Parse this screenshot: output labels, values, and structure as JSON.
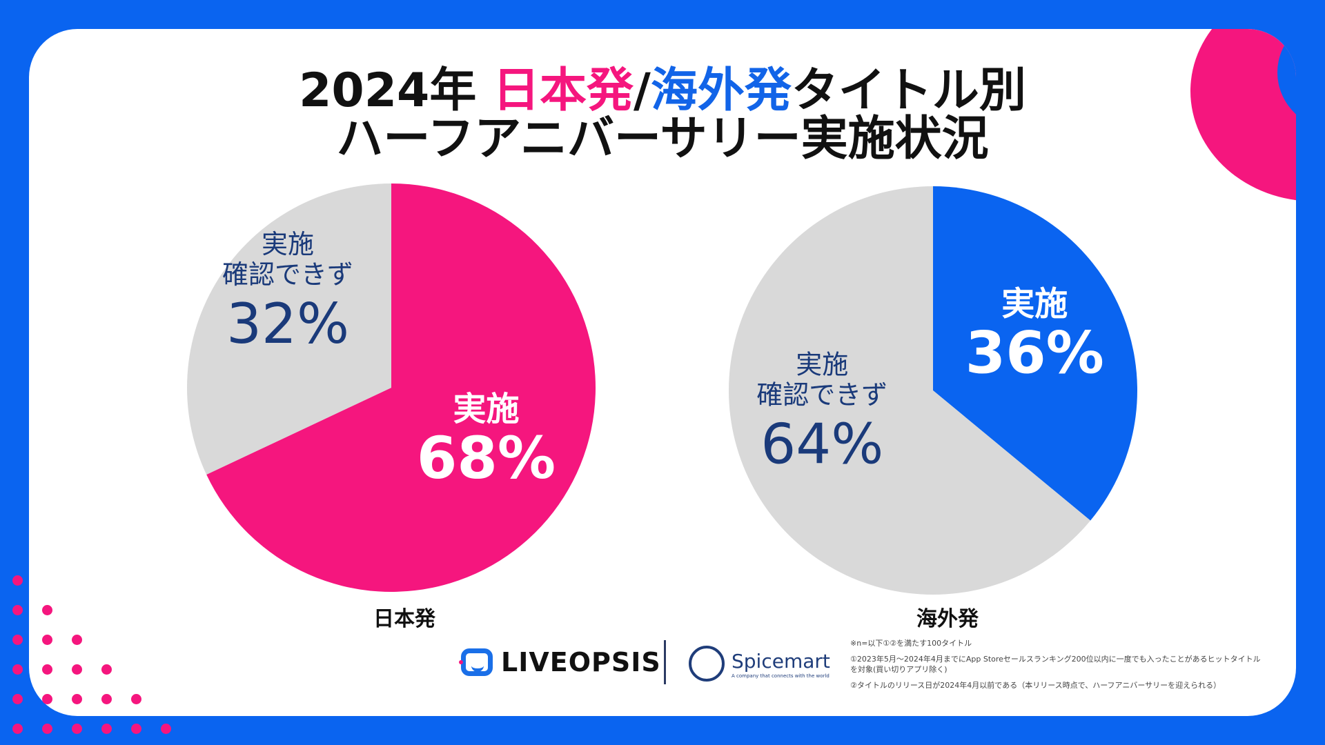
{
  "title": {
    "line1_prefix": "2024年 ",
    "line1_japan": "日本発",
    "line1_slash": "/",
    "line1_overseas": "海外発",
    "line1_suffix": "タイトル別",
    "line2": "ハーフアニバーサリー実施状況"
  },
  "colors": {
    "japan": "#f5167e",
    "overseas": "#0a64f0",
    "not_confirmed": "#d9d9d9",
    "label_dark": "#1a3a7a"
  },
  "chart_data": [
    {
      "type": "pie",
      "xlabel": "日本発",
      "slices": [
        {
          "label": "実施",
          "value": 68,
          "display": "68%"
        },
        {
          "label": "実施\n確認できず",
          "value": 32,
          "display": "32%"
        }
      ]
    },
    {
      "type": "pie",
      "xlabel": "海外発",
      "slices": [
        {
          "label": "実施",
          "value": 36,
          "display": "36%"
        },
        {
          "label": "実施\n確認できず",
          "value": 64,
          "display": "64%"
        }
      ]
    }
  ],
  "labels": {
    "done": "実施",
    "not_confirmed_line1": "実施",
    "not_confirmed_line2": "確認できず"
  },
  "logos": {
    "liveopsis": "LIVEOPSIS",
    "spicemart": "Spicemart",
    "spicemart_tagline": "A company that connects with the world"
  },
  "notes": [
    "※n=以下①②を満たす100タイトル",
    "①2023年5月〜2024年4月までにApp Storeセールスランキング200位以内に一度でも入ったことがあるヒットタイトルを対象(買い切りアプリ除く)",
    "②タイトルのリリース日が2024年4月以前である（本リリース時点で、ハーフアニバーサリーを迎えられる）"
  ]
}
